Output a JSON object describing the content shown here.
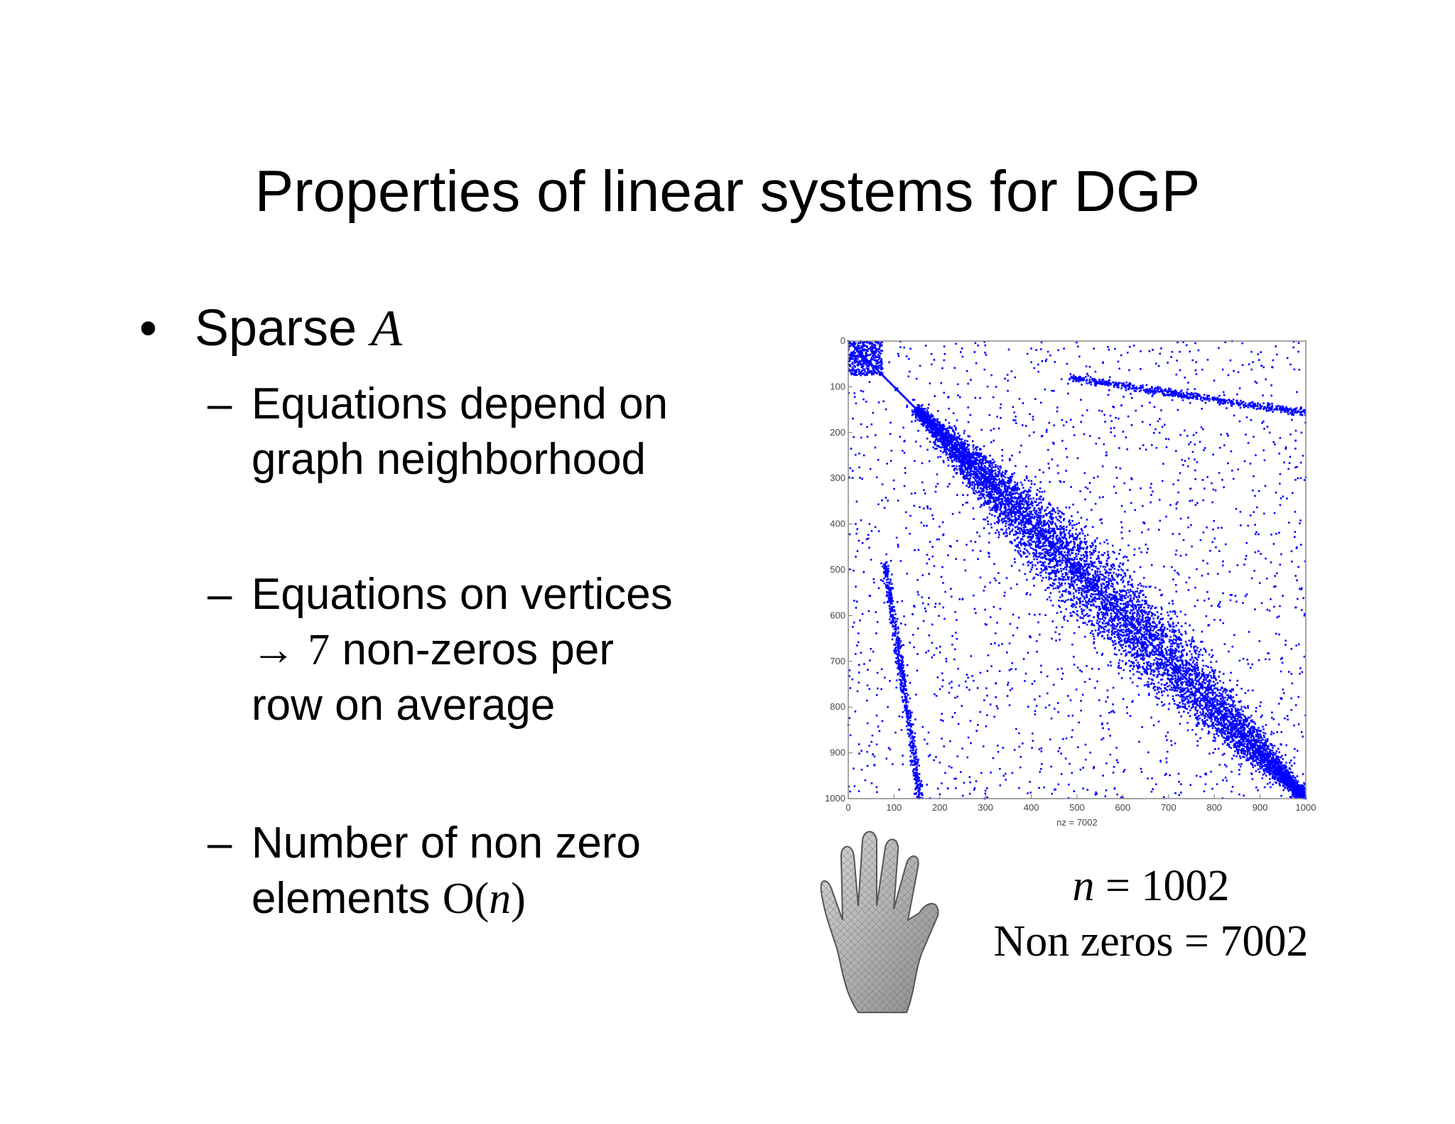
{
  "slide": {
    "title": "Properties of linear systems for DGP",
    "bullet": {
      "marker": "•",
      "text": "Sparse ",
      "symbol": "A"
    },
    "subitems": [
      {
        "dash": "–",
        "line1": "Equations depend on",
        "line2": "graph neighborhood"
      },
      {
        "dash": "–",
        "line1": "Equations on vertices",
        "arrow": "→",
        "number": "7",
        "line2_rest": " non-zeros per",
        "line3": "row on average"
      },
      {
        "dash": "–",
        "line1": "Number of non zero",
        "line2_pre": "elements ",
        "func": "O(",
        "var": "n",
        "func_close": ")"
      }
    ],
    "stats": {
      "n_var": "n",
      "n_rest": " = 1002",
      "nonzeros": "Non zeros = 7002"
    }
  },
  "chart_data": {
    "type": "scatter",
    "title": "",
    "xlabel": "nz = 7002",
    "ylabel": "",
    "xlim": [
      0,
      1000
    ],
    "ylim": [
      1000,
      0
    ],
    "xticks": [
      "0",
      "100",
      "200",
      "300",
      "400",
      "500",
      "600",
      "700",
      "800",
      "900",
      "1000"
    ],
    "yticks": [
      "0",
      "100",
      "200",
      "300",
      "400",
      "500",
      "600",
      "700",
      "800",
      "900",
      "1000"
    ],
    "grid": false,
    "marker_color": "#0000ff",
    "series": [
      {
        "values": "sparsity pattern of 1002×1002 mesh Laplacian: dense main diagonal band widening toward the middle, dense block near (0–80,0–80), off-diagonal arcs near rows 70–160 (cols 500–1000) and cols 90–170 (rows 500–1000)"
      }
    ]
  }
}
